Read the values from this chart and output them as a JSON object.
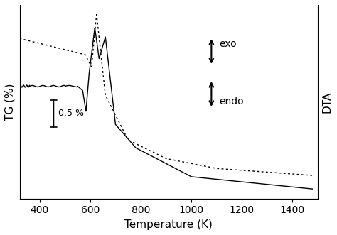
{
  "xlabel": "Temperature (K)",
  "ylabel": "TG (%)",
  "ylabel2": "DTA",
  "xlim": [
    320,
    1500
  ],
  "xticks": [
    400,
    600,
    800,
    1000,
    1200,
    1400
  ],
  "exo_label": "exo",
  "endo_label": "endo",
  "scale_label": "0.5 %",
  "font_size": 11
}
